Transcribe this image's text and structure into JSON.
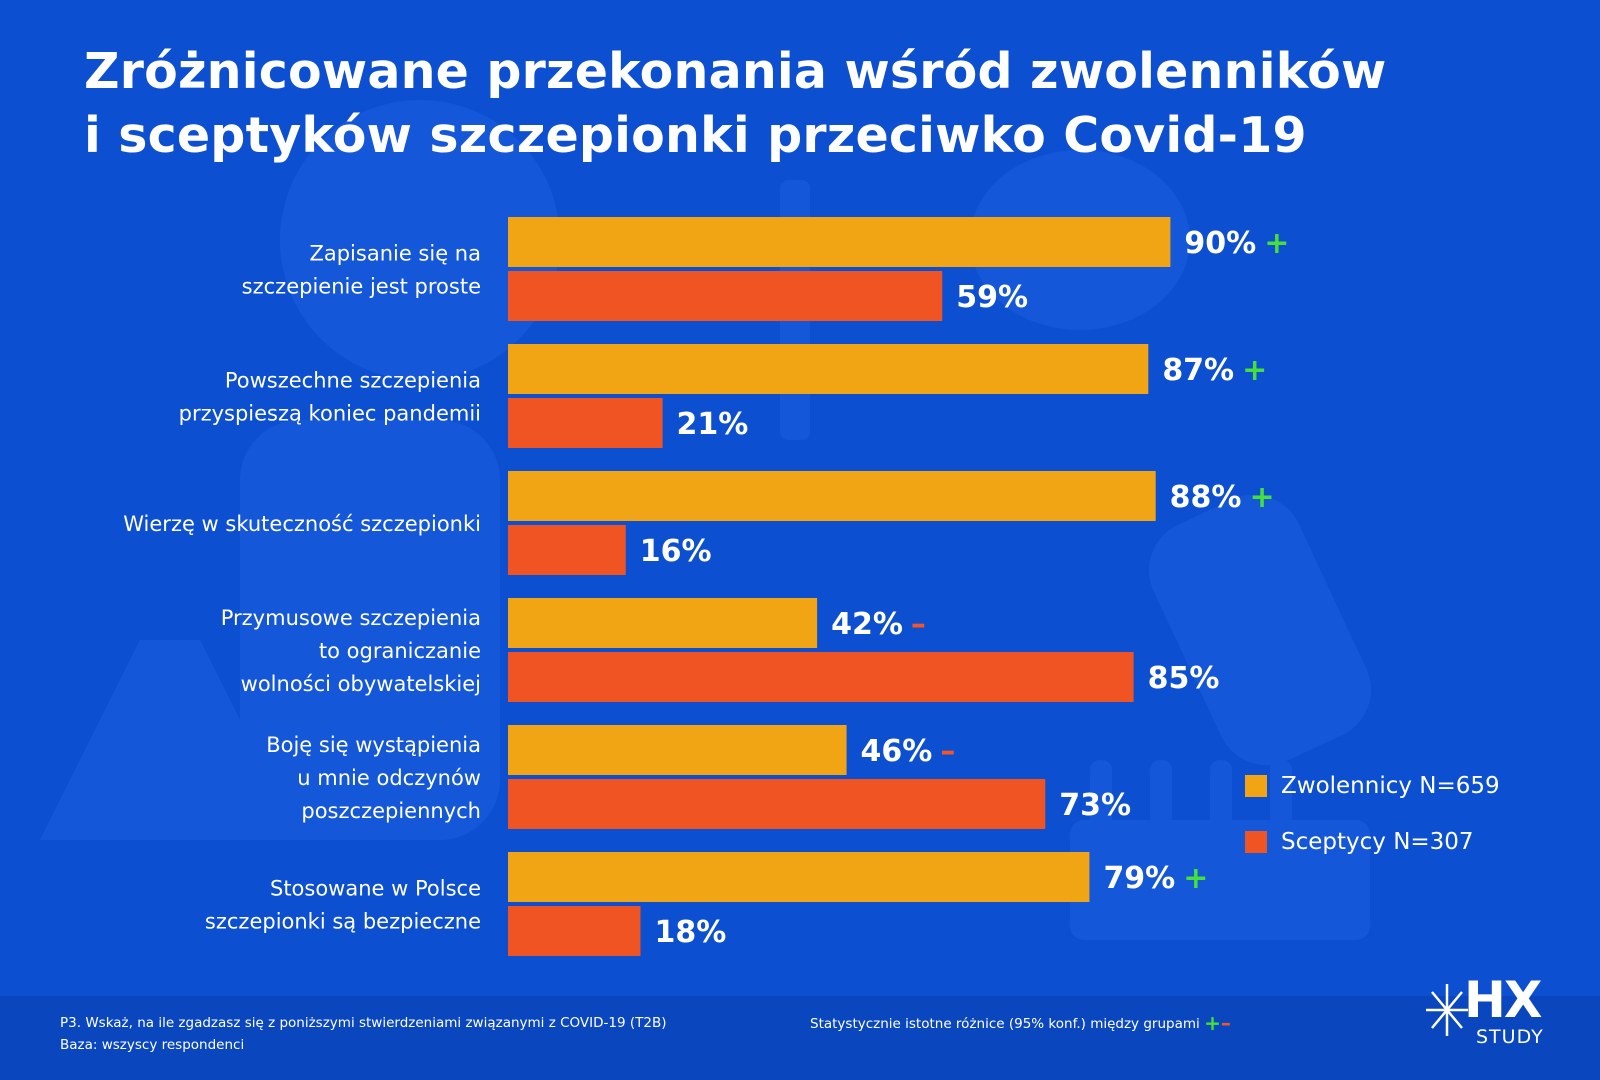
{
  "title": {
    "line1": "Zróżnicowane przekonania wśród zwolenników",
    "line2": "i sceptyków szczepionki przeciwko Covid-19"
  },
  "colors": {
    "background": "#0d4fd1",
    "zwolennicy": "#f2a514",
    "sceptycy": "#f05423",
    "significant_plus": "#45e03a",
    "significant_minus": "#f2552a"
  },
  "legend": {
    "zwolennicy": "Zwolennicy N=659",
    "sceptycy": "Sceptycy N=307"
  },
  "footer": {
    "question": "P3. Wskaż, na ile zgadzasz się z poniższymi stwierdzeniami związanymi z COVID-19 (T2B)",
    "base": "Baza: wszyscy respondenci",
    "significance_note": "Statystycznie istotne różnice (95% konf.) między grupami",
    "plus_symbol": "+",
    "minus_symbol": "–"
  },
  "logo": {
    "mark": "HX",
    "sub": "STUDY"
  },
  "chart_data": {
    "type": "bar",
    "orientation": "horizontal",
    "xlim": [
      0,
      100
    ],
    "categories": [
      [
        "Zapisanie się na",
        "szczepienie jest proste"
      ],
      [
        "Powszechne szczepienia",
        "przyspieszą koniec pandemii"
      ],
      [
        "Wierzę w skuteczność szczepionki"
      ],
      [
        "Przymusowe szczepienia",
        "to ograniczanie",
        "wolności obywatelskiej"
      ],
      [
        "Boję się wystąpienia",
        "u mnie odczynów",
        "poszczepiennych"
      ],
      [
        "Stosowane w Polsce",
        "szczepionki są bezpieczne"
      ]
    ],
    "series": [
      {
        "name": "Zwolennicy N=659",
        "values": [
          90,
          87,
          88,
          42,
          46,
          79
        ],
        "labels": [
          "90%",
          "87%",
          "88%",
          "42%",
          "46%",
          "79%"
        ],
        "significance": [
          "+",
          "+",
          "+",
          "–",
          "–",
          "+"
        ]
      },
      {
        "name": "Sceptycy N=307",
        "values": [
          59,
          21,
          16,
          85,
          73,
          18
        ],
        "labels": [
          "59%",
          "21%",
          "16%",
          "85%",
          "73%",
          "18%"
        ]
      }
    ],
    "legend_position": "right"
  }
}
